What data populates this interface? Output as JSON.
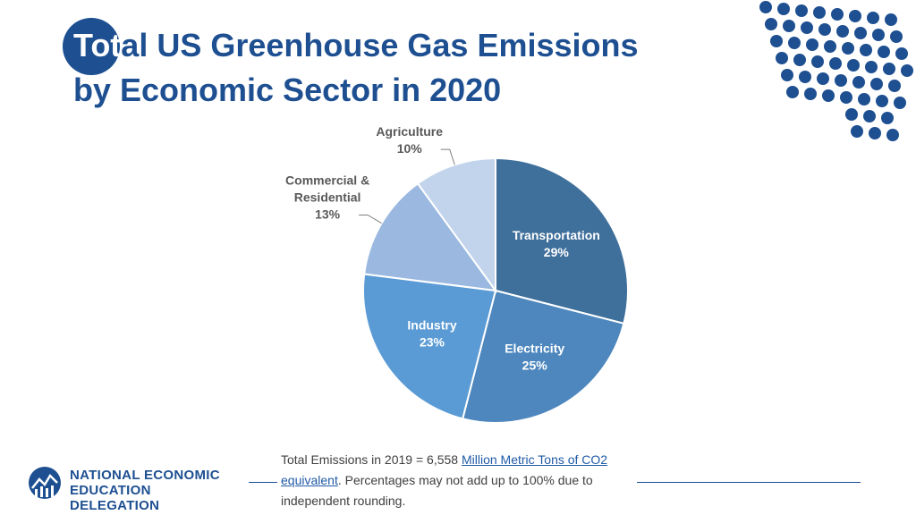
{
  "title": {
    "part_a": "Tot",
    "part_b": "al US Greenhouse Gas Emissions",
    "line2": "by Economic Sector in 2020"
  },
  "colors": {
    "brand": "#1d4f91",
    "transportation": "#3f6f9b",
    "electricity": "#4d87be",
    "industry": "#5b9bd5",
    "commercial": "#9ab8e0",
    "agriculture": "#c2d4ec"
  },
  "chart_data": {
    "type": "pie",
    "title": "",
    "slices": [
      {
        "label": "Transportation",
        "value": 29,
        "display": "29%",
        "color": "#3f6f9b",
        "label_pos": "inside"
      },
      {
        "label": "Electricity",
        "value": 25,
        "display": "25%",
        "color": "#4d87be",
        "label_pos": "inside"
      },
      {
        "label": "Industry",
        "value": 23,
        "display": "23%",
        "color": "#5b9bd5",
        "label_pos": "inside"
      },
      {
        "label": "Commercial & Residential",
        "label_lines": [
          "Commercial &",
          "Residential"
        ],
        "value": 13,
        "display": "13%",
        "color": "#9ab8e0",
        "label_pos": "outside"
      },
      {
        "label": "Agriculture",
        "value": 10,
        "display": "10%",
        "color": "#c2d4ec",
        "label_pos": "outside"
      }
    ]
  },
  "footnote": {
    "prefix": "Total Emissions in 2019 = 6,558 ",
    "link1": "Million Metric Tons of CO2",
    "link2": "equivalent",
    "suffix": ". Percentages may not add up to 100% due to independent rounding."
  },
  "logo": {
    "line1": "NATIONAL ECONOMIC",
    "line2": "EDUCATION DELEGATION"
  }
}
